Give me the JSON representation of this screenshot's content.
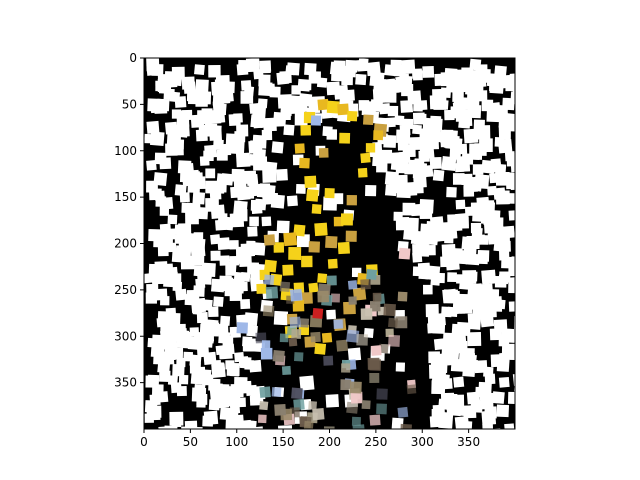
{
  "image": {
    "description_type": "mosaic of scattered square tiles over black background",
    "background_color": "#000000",
    "tile_color_dominant": "#ffffff",
    "highlight_colors": [
      "#f5d21a",
      "#e8b820",
      "#c9a040",
      "#9fb8e8",
      "#f0c8c8",
      "#6fa0a0",
      "#cc2020"
    ]
  },
  "axes": {
    "x_ticks": [
      "0",
      "50",
      "100",
      "150",
      "200",
      "250",
      "300",
      "350"
    ],
    "y_ticks": [
      "0",
      "50",
      "100",
      "150",
      "200",
      "250",
      "300",
      "350"
    ],
    "xlim": [
      0,
      400
    ],
    "ylim": [
      400,
      0
    ]
  }
}
